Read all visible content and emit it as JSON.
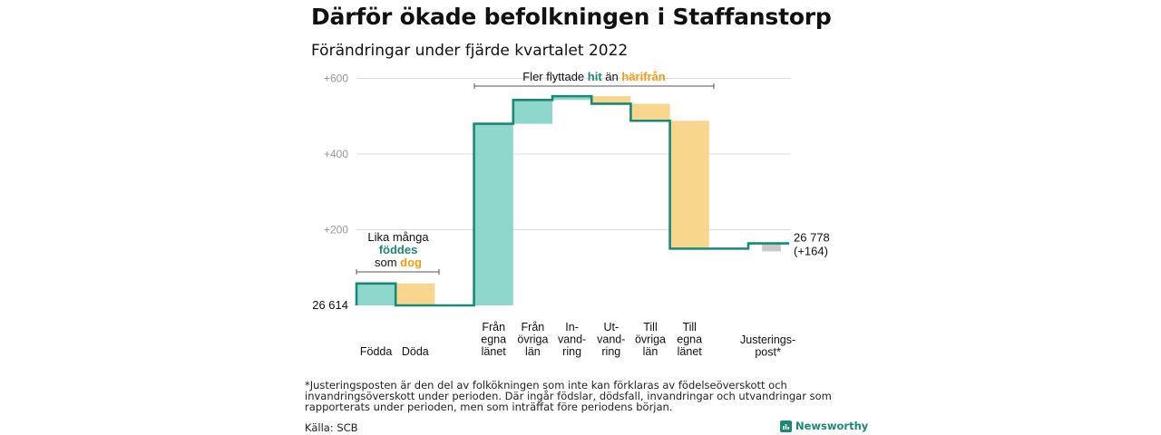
{
  "title": "Därför ökade befolkningen i Staffanstorp",
  "subtitle": "Förändringar under fjärde kvartalet 2022",
  "colors": {
    "increase": "#8fd6cc",
    "decrease": "#f9d68d",
    "line": "#178a76",
    "adjustment": "#c9c9c9",
    "grid": "#dcdcdc",
    "tick_text": "#9a9a9a",
    "hit": "#1a8a72",
    "harifran": "#f39c12"
  },
  "chart_data": {
    "type": "waterfall",
    "start_value": 26614,
    "start_label": "26 614",
    "end_label": "26 778",
    "end_change_label": "(+164)",
    "y_axis": {
      "ticks": [
        200,
        400,
        600
      ],
      "tick_labels": [
        "+200",
        "+400",
        "+600"
      ],
      "range": [
        0,
        640
      ]
    },
    "grid": true,
    "steps": [
      {
        "label_lines": [
          "Födda"
        ],
        "change": 58,
        "kind": "increase"
      },
      {
        "label_lines": [
          "Döda"
        ],
        "change": -58,
        "kind": "decrease"
      },
      {
        "label_lines": [
          "Från",
          "egna",
          "länet"
        ],
        "change": 480,
        "kind": "increase"
      },
      {
        "label_lines": [
          "Från",
          "övriga",
          "län"
        ],
        "change": 63,
        "kind": "increase"
      },
      {
        "label_lines": [
          "In-",
          "vand-",
          "ring"
        ],
        "change": 10,
        "kind": "increase"
      },
      {
        "label_lines": [
          "Ut-",
          "vand-",
          "ring"
        ],
        "change": -20,
        "kind": "decrease"
      },
      {
        "label_lines": [
          "Till",
          "övriga",
          "län"
        ],
        "change": -45,
        "kind": "decrease"
      },
      {
        "label_lines": [
          "Till",
          "egna",
          "länet"
        ],
        "change": -338,
        "kind": "decrease"
      },
      {
        "label_lines": [
          "Justerings-",
          "post*"
        ],
        "change": 14,
        "kind": "adjustment"
      }
    ],
    "annotations": {
      "births_deaths": {
        "line1": "Lika många",
        "line2": "föddes",
        "line3_prefix": "som ",
        "line3_highlight": "dog"
      },
      "migration": {
        "prefix": "Fler flyttade ",
        "hit": "hit",
        "middle": " än ",
        "harifran": "härifrån"
      }
    }
  },
  "footnote": "*Justeringsposten är den del av folkökningen som inte kan förklaras av födelseöverskott och invandringsöverskott under perioden. Där ingår födslar, dödsfall, invandringar och utvandringar som rapporterats under perioden, men som inträffat före periodens början.",
  "source": "Källa: SCB",
  "brand": {
    "name": "Newsworthy",
    "icon": "newsworthy-logo-icon"
  }
}
